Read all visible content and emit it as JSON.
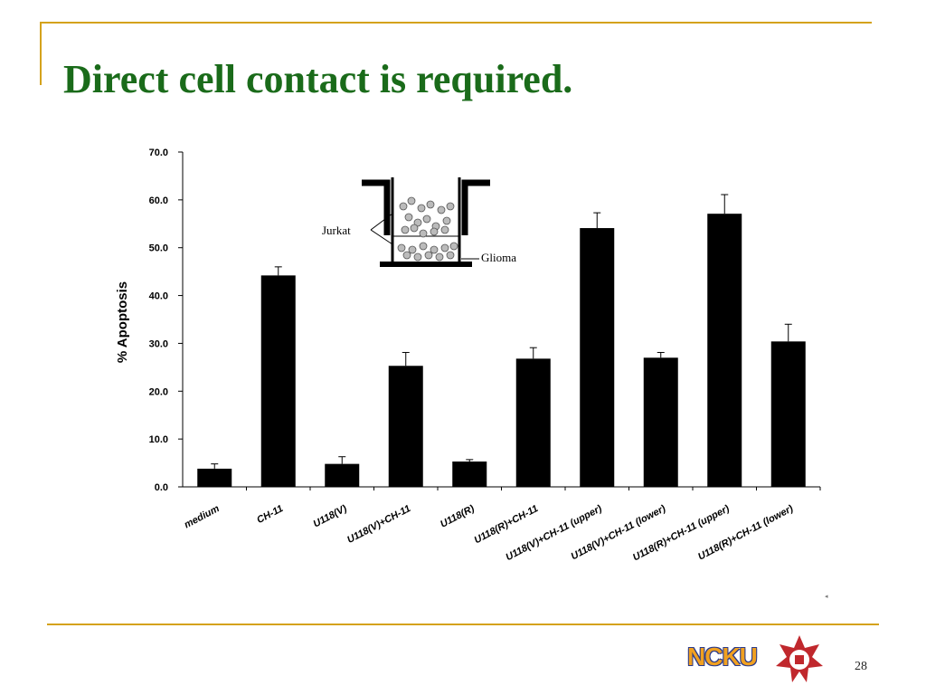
{
  "slide": {
    "title": "Direct cell contact is required.",
    "page_number": "28",
    "logo_text": "NCKU",
    "stray_mark": "◂"
  },
  "colors": {
    "title": "#1a6b1a",
    "frame": "#d4a21c",
    "bars": "#000000",
    "logo_text": "#f0a020",
    "logo_outline": "#2a3a8a",
    "emblem": "#c0282d"
  },
  "inset_diagram": {
    "labels": {
      "jurkat": "Jurkat",
      "glioma": "Glioma"
    }
  },
  "chart_data": {
    "type": "bar",
    "title": "",
    "xlabel": "",
    "ylabel": "% Apoptosis",
    "ylim": [
      0,
      70
    ],
    "yticks": [
      "0.0",
      "10.0",
      "20.0",
      "30.0",
      "40.0",
      "50.0",
      "60.0",
      "70.0"
    ],
    "categories": [
      "medium",
      "CH-11",
      "U118(V)",
      "U118(V)+CH-11",
      "U118(R)",
      "U118(R)+CH-11",
      "U118(V)+CH-11 (upper)",
      "U118(V)+CH-11 (lower)",
      "U118(R)+CH-11 (upper)",
      "U118(R)+CH-11 (lower)"
    ],
    "values": [
      3.8,
      44.2,
      4.8,
      25.3,
      5.3,
      26.8,
      54.1,
      27.0,
      57.1,
      30.4
    ],
    "errors": [
      1.0,
      1.8,
      1.5,
      2.8,
      0.4,
      2.3,
      3.2,
      1.1,
      4.0,
      3.6
    ],
    "grid": false,
    "legend": "none"
  }
}
